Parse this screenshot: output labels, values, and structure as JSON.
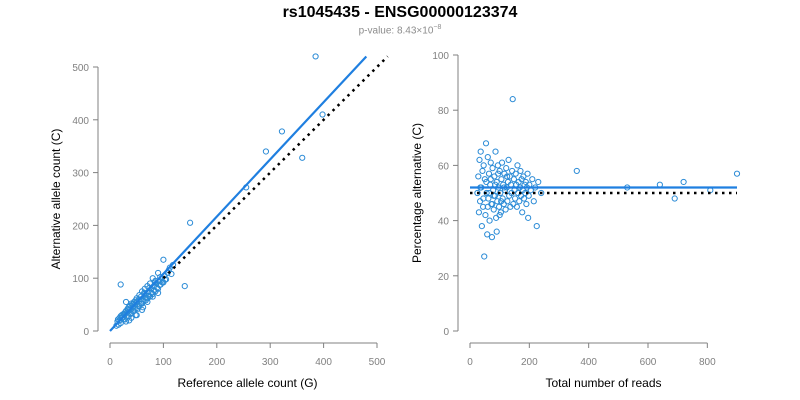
{
  "title": "rs1045435 - ENSG00000123374",
  "subtitle": {
    "prefix": "p-value: 8.43×10",
    "exponent": "−8"
  },
  "colors": {
    "points": "#2b8bd6",
    "fit_line": "#1f7fe0",
    "reference_line": "#000000",
    "axis": "#808080"
  },
  "chart_data": [
    {
      "type": "scatter",
      "xlabel": "Reference allele count (G)",
      "ylabel": "Alternative allele count (C)",
      "xlim": [
        0,
        500
      ],
      "ylim": [
        0,
        500
      ],
      "xticks": [
        0,
        100,
        200,
        300,
        400,
        500
      ],
      "yticks": [
        0,
        100,
        200,
        300,
        400,
        500
      ],
      "fit_line": [
        [
          0,
          0
        ],
        [
          480,
          520
        ]
      ],
      "reference_line": [
        [
          100,
          100
        ],
        [
          520,
          520
        ]
      ],
      "points": [
        [
          12,
          10
        ],
        [
          14,
          18
        ],
        [
          16,
          12
        ],
        [
          18,
          20
        ],
        [
          20,
          15
        ],
        [
          22,
          25
        ],
        [
          25,
          22
        ],
        [
          27,
          30
        ],
        [
          30,
          18
        ],
        [
          32,
          35
        ],
        [
          35,
          28
        ],
        [
          36,
          20
        ],
        [
          38,
          40
        ],
        [
          40,
          33
        ],
        [
          42,
          45
        ],
        [
          45,
          38
        ],
        [
          47,
          50
        ],
        [
          48,
          30
        ],
        [
          50,
          55
        ],
        [
          52,
          42
        ],
        [
          55,
          48
        ],
        [
          57,
          60
        ],
        [
          60,
          52
        ],
        [
          62,
          45
        ],
        [
          65,
          70
        ],
        [
          67,
          58
        ],
        [
          70,
          62
        ],
        [
          72,
          75
        ],
        [
          75,
          65
        ],
        [
          77,
          80
        ],
        [
          80,
          70
        ],
        [
          82,
          85
        ],
        [
          85,
          75
        ],
        [
          87,
          90
        ],
        [
          90,
          80
        ],
        [
          92,
          95
        ],
        [
          95,
          88
        ],
        [
          97,
          100
        ],
        [
          100,
          92
        ],
        [
          102,
          105
        ],
        [
          105,
          98
        ],
        [
          108,
          110
        ],
        [
          110,
          115
        ],
        [
          112,
          120
        ],
        [
          115,
          108
        ],
        [
          118,
          125
        ],
        [
          100,
          135
        ],
        [
          90,
          110
        ],
        [
          85,
          95
        ],
        [
          80,
          100
        ],
        [
          75,
          90
        ],
        [
          70,
          85
        ],
        [
          65,
          80
        ],
        [
          60,
          75
        ],
        [
          58,
          65
        ],
        [
          55,
          68
        ],
        [
          50,
          62
        ],
        [
          48,
          58
        ],
        [
          45,
          55
        ],
        [
          42,
          50
        ],
        [
          40,
          52
        ],
        [
          38,
          48
        ],
        [
          35,
          45
        ],
        [
          33,
          42
        ],
        [
          30,
          38
        ],
        [
          28,
          35
        ],
        [
          25,
          32
        ],
        [
          22,
          30
        ],
        [
          20,
          28
        ],
        [
          18,
          25
        ],
        [
          15,
          22
        ],
        [
          24,
          26
        ],
        [
          26,
          32
        ],
        [
          34,
          40
        ],
        [
          44,
          52
        ],
        [
          54,
          60
        ],
        [
          64,
          72
        ],
        [
          74,
          82
        ],
        [
          84,
          92
        ],
        [
          94,
          102
        ],
        [
          43,
          37
        ],
        [
          53,
          47
        ],
        [
          63,
          57
        ],
        [
          73,
          67
        ],
        [
          83,
          77
        ],
        [
          93,
          87
        ],
        [
          103,
          97
        ],
        [
          28,
          22
        ],
        [
          38,
          32
        ],
        [
          48,
          42
        ],
        [
          58,
          52
        ],
        [
          68,
          62
        ],
        [
          78,
          72
        ],
        [
          88,
          82
        ],
        [
          98,
          92
        ],
        [
          20,
          88
        ],
        [
          30,
          55
        ],
        [
          40,
          25
        ],
        [
          50,
          30
        ],
        [
          60,
          40
        ],
        [
          70,
          55
        ],
        [
          80,
          65
        ],
        [
          90,
          72
        ],
        [
          140,
          85
        ],
        [
          150,
          205
        ],
        [
          255,
          272
        ],
        [
          292,
          340
        ],
        [
          322,
          378
        ],
        [
          360,
          328
        ],
        [
          385,
          520
        ],
        [
          398,
          410
        ]
      ]
    },
    {
      "type": "scatter",
      "xlabel": "Total number of reads",
      "ylabel": "Percentage alternative (C)",
      "xlim": [
        0,
        900
      ],
      "ylim": [
        0,
        100
      ],
      "xticks": [
        0,
        200,
        400,
        600,
        800
      ],
      "yticks": [
        0,
        20,
        40,
        60,
        80,
        100
      ],
      "fit_line": [
        [
          0,
          52
        ],
        [
          900,
          52
        ]
      ],
      "reference_line": [
        [
          0,
          50
        ],
        [
          900,
          50
        ]
      ],
      "points": [
        [
          25,
          50
        ],
        [
          28,
          56
        ],
        [
          30,
          43
        ],
        [
          32,
          62
        ],
        [
          34,
          47
        ],
        [
          36,
          65
        ],
        [
          38,
          52
        ],
        [
          40,
          38
        ],
        [
          42,
          58
        ],
        [
          44,
          45
        ],
        [
          46,
          60
        ],
        [
          48,
          27
        ],
        [
          50,
          55
        ],
        [
          52,
          42
        ],
        [
          54,
          68
        ],
        [
          56,
          50
        ],
        [
          58,
          35
        ],
        [
          60,
          63
        ],
        [
          62,
          48
        ],
        [
          64,
          57
        ],
        [
          66,
          40
        ],
        [
          68,
          53
        ],
        [
          70,
          61
        ],
        [
          72,
          46
        ],
        [
          74,
          34
        ],
        [
          76,
          59
        ],
        [
          78,
          51
        ],
        [
          80,
          44
        ],
        [
          82,
          56
        ],
        [
          84,
          49
        ],
        [
          86,
          65
        ],
        [
          88,
          41
        ],
        [
          90,
          54
        ],
        [
          92,
          47
        ],
        [
          94,
          60
        ],
        [
          96,
          52
        ],
        [
          98,
          45
        ],
        [
          100,
          58
        ],
        [
          102,
          50
        ],
        [
          104,
          43
        ],
        [
          106,
          55
        ],
        [
          108,
          61
        ],
        [
          110,
          48
        ],
        [
          112,
          53
        ],
        [
          114,
          46
        ],
        [
          116,
          57
        ],
        [
          118,
          51
        ],
        [
          120,
          44
        ],
        [
          122,
          59
        ],
        [
          124,
          52
        ],
        [
          126,
          47
        ],
        [
          128,
          54
        ],
        [
          130,
          62
        ],
        [
          132,
          49
        ],
        [
          134,
          56
        ],
        [
          136,
          45
        ],
        [
          138,
          53
        ],
        [
          140,
          50
        ],
        [
          142,
          58
        ],
        [
          144,
          84
        ],
        [
          146,
          46
        ],
        [
          148,
          55
        ],
        [
          150,
          51
        ],
        [
          152,
          48
        ],
        [
          154,
          57
        ],
        [
          156,
          53
        ],
        [
          158,
          45
        ],
        [
          160,
          60
        ],
        [
          162,
          50
        ],
        [
          164,
          54
        ],
        [
          166,
          47
        ],
        [
          168,
          52
        ],
        [
          170,
          58
        ],
        [
          172,
          49
        ],
        [
          174,
          55
        ],
        [
          176,
          43
        ],
        [
          178,
          51
        ],
        [
          180,
          56
        ],
        [
          182,
          48
        ],
        [
          184,
          53
        ],
        [
          186,
          50
        ],
        [
          188,
          54
        ],
        [
          190,
          46
        ],
        [
          192,
          52
        ],
        [
          194,
          57
        ],
        [
          196,
          41
        ],
        [
          198,
          49
        ],
        [
          200,
          53
        ],
        [
          205,
          51
        ],
        [
          210,
          55
        ],
        [
          215,
          47
        ],
        [
          220,
          52
        ],
        [
          225,
          38
        ],
        [
          230,
          54
        ],
        [
          240,
          50
        ],
        [
          60,
          45
        ],
        [
          70,
          55
        ],
        [
          80,
          49
        ],
        [
          90,
          36
        ],
        [
          100,
          42
        ],
        [
          35,
          52
        ],
        [
          45,
          48
        ],
        [
          55,
          54
        ],
        [
          65,
          50
        ],
        [
          75,
          46
        ],
        [
          85,
          53
        ],
        [
          95,
          57
        ],
        [
          105,
          47
        ],
        [
          115,
          52
        ],
        [
          125,
          56
        ],
        [
          360,
          58
        ],
        [
          530,
          52
        ],
        [
          640,
          53
        ],
        [
          690,
          48
        ],
        [
          720,
          54
        ],
        [
          810,
          51
        ],
        [
          900,
          57
        ]
      ]
    }
  ]
}
